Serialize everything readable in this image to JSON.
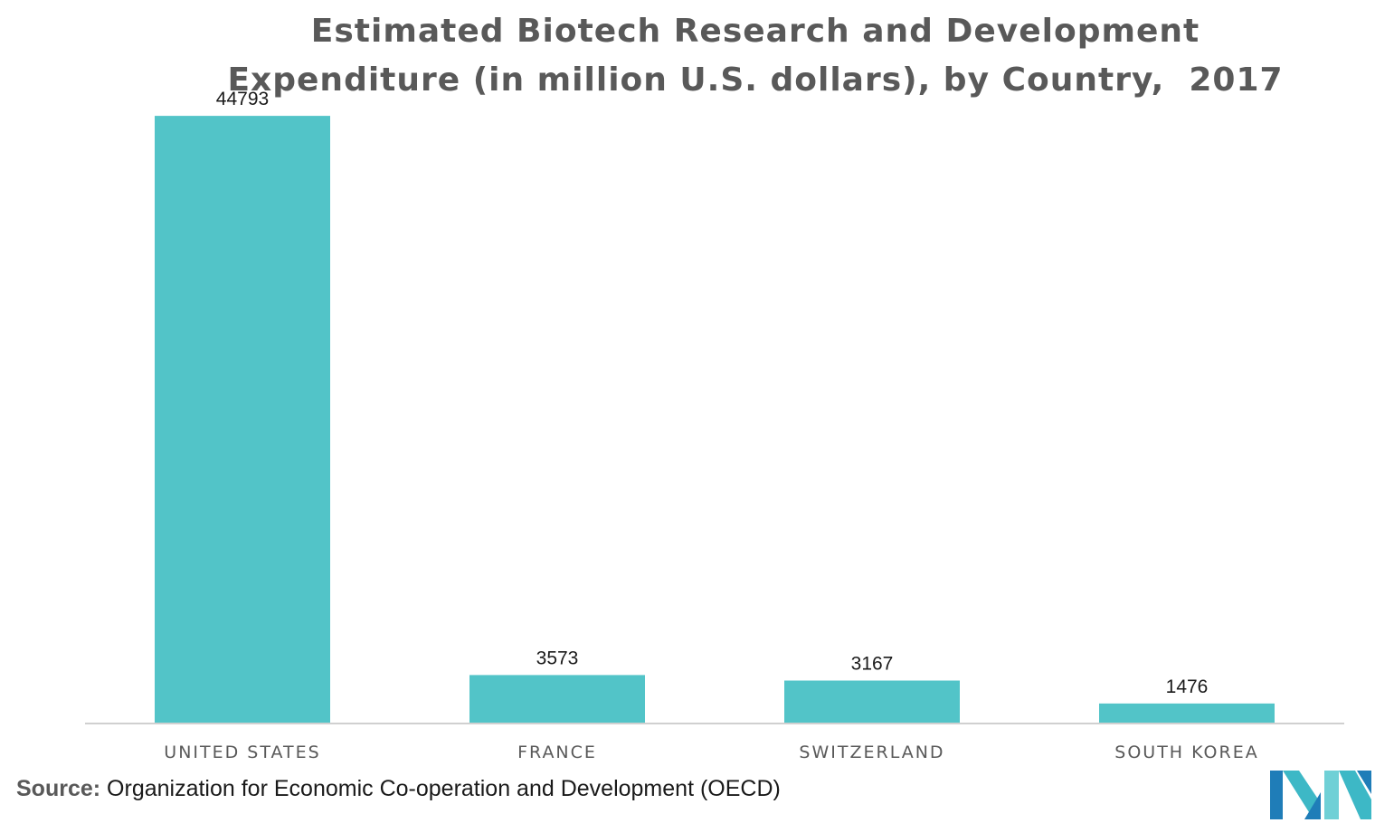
{
  "chart_data": {
    "type": "bar",
    "title_lines": [
      "Estimated Biotech Research and Development",
      "Expenditure (in million U.S. dollars), by Country,  2017"
    ],
    "categories": [
      "UNITED STATES",
      "FRANCE",
      "SWITZERLAND",
      "SOUTH KOREA"
    ],
    "values": [
      44793,
      3573,
      3167,
      1476
    ],
    "xlabel": "",
    "ylabel": "",
    "ylim": [
      0,
      50000
    ],
    "bar_color": "#52C4C8",
    "grid": false
  },
  "source": {
    "label": "Source:",
    "text": "Organization for Economic Co-operation and Development (OECD)"
  },
  "logo": {
    "icon": "mordor-intelligence-logo-icon",
    "colors": [
      "#1F7DB8",
      "#3DB8C6",
      "#6FD0D6"
    ]
  }
}
